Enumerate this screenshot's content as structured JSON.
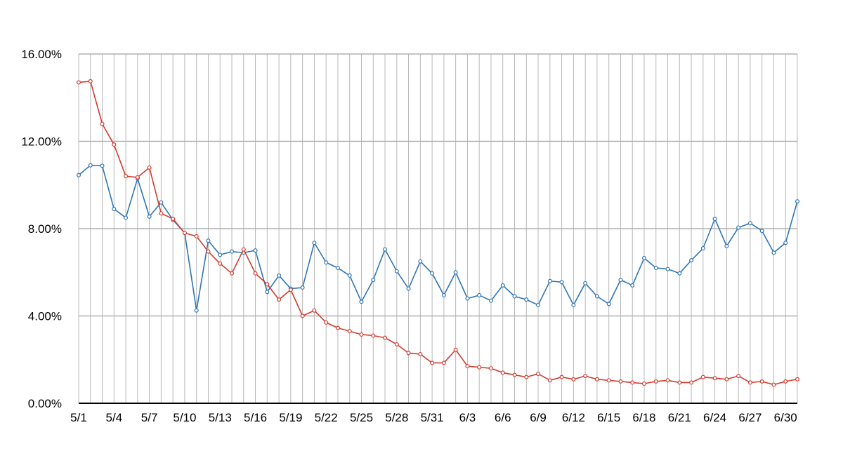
{
  "chart_data": {
    "type": "line",
    "title": "",
    "xlabel": "",
    "ylabel": "",
    "ylim": [
      0,
      16
    ],
    "y_unit": "%",
    "y_ticks": [
      "0.00%",
      "4.00%",
      "8.00%",
      "12.00%",
      "16.00%"
    ],
    "grid": {
      "horizontal": true,
      "vertical": true
    },
    "legend": "none",
    "x": [
      "5/1",
      "5/2",
      "5/3",
      "5/4",
      "5/5",
      "5/6",
      "5/7",
      "5/8",
      "5/9",
      "5/10",
      "5/11",
      "5/12",
      "5/13",
      "5/14",
      "5/15",
      "5/16",
      "5/17",
      "5/18",
      "5/19",
      "5/20",
      "5/21",
      "5/22",
      "5/23",
      "5/24",
      "5/25",
      "5/26",
      "5/27",
      "5/28",
      "5/29",
      "5/30",
      "5/31",
      "6/1",
      "6/2",
      "6/3",
      "6/4",
      "6/5",
      "6/6",
      "6/7",
      "6/8",
      "6/9",
      "6/10",
      "6/11",
      "6/12",
      "6/13",
      "6/14",
      "6/15",
      "6/16",
      "6/17",
      "6/18",
      "6/19",
      "6/20",
      "6/21",
      "6/22",
      "6/23",
      "6/24",
      "6/25",
      "6/26",
      "6/27",
      "6/28",
      "6/29",
      "6/30",
      "7/1"
    ],
    "x_tick_labels": [
      "5/1",
      "5/4",
      "5/7",
      "5/10",
      "5/13",
      "5/16",
      "5/19",
      "5/22",
      "5/25",
      "5/28",
      "5/31",
      "6/3",
      "6/6",
      "6/9",
      "6/12",
      "6/15",
      "6/18",
      "6/21",
      "6/24",
      "6/27",
      "6/30"
    ],
    "series": [
      {
        "color": "#2e75b6",
        "values": [
          10.45,
          10.9,
          10.88,
          8.9,
          8.5,
          10.3,
          8.55,
          9.2,
          8.4,
          7.8,
          4.25,
          7.45,
          6.8,
          6.95,
          6.9,
          7.0,
          5.1,
          5.85,
          5.25,
          5.3,
          7.35,
          6.45,
          6.2,
          5.85,
          4.65,
          5.65,
          7.05,
          6.05,
          5.25,
          6.5,
          5.95,
          4.95,
          6.0,
          4.8,
          4.95,
          4.7,
          5.4,
          4.9,
          4.75,
          4.5,
          5.6,
          5.55,
          4.5,
          5.5,
          4.9,
          4.55,
          5.65,
          5.4,
          6.65,
          6.2,
          6.15,
          5.95,
          6.55,
          7.1,
          8.45,
          7.2,
          8.05,
          8.25,
          7.9,
          6.9,
          7.35,
          9.25
        ]
      },
      {
        "color": "#d33a2c",
        "values": [
          14.7,
          14.75,
          12.8,
          11.85,
          10.4,
          10.35,
          10.8,
          8.7,
          8.45,
          7.8,
          7.65,
          6.95,
          6.4,
          5.95,
          7.05,
          5.95,
          5.45,
          4.75,
          5.2,
          4.0,
          4.25,
          3.7,
          3.45,
          3.3,
          3.15,
          3.1,
          3.0,
          2.7,
          2.3,
          2.25,
          1.85,
          1.85,
          2.45,
          1.7,
          1.65,
          1.6,
          1.4,
          1.3,
          1.2,
          1.35,
          1.05,
          1.2,
          1.1,
          1.25,
          1.1,
          1.05,
          1.0,
          0.95,
          0.9,
          1.0,
          1.05,
          0.95,
          0.95,
          1.2,
          1.15,
          1.1,
          1.25,
          0.95,
          1.0,
          0.85,
          1.0,
          1.1
        ]
      }
    ]
  }
}
